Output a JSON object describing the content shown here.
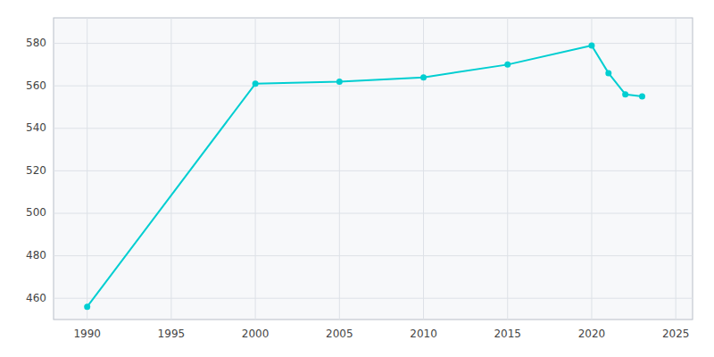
{
  "chart_data": {
    "type": "line",
    "x": [
      1990,
      2000,
      2005,
      2010,
      2015,
      2020,
      2021,
      2022,
      2023
    ],
    "values": [
      456,
      561,
      562,
      564,
      570,
      579,
      566,
      556,
      555
    ],
    "color": "#00CED1",
    "marker": "circle",
    "xlim": [
      1988,
      2026
    ],
    "ylim": [
      450,
      592
    ],
    "xticks": [
      1990,
      1995,
      2000,
      2005,
      2010,
      2015,
      2020,
      2025
    ],
    "yticks": [
      460,
      480,
      500,
      520,
      540,
      560,
      580
    ],
    "grid": true
  }
}
